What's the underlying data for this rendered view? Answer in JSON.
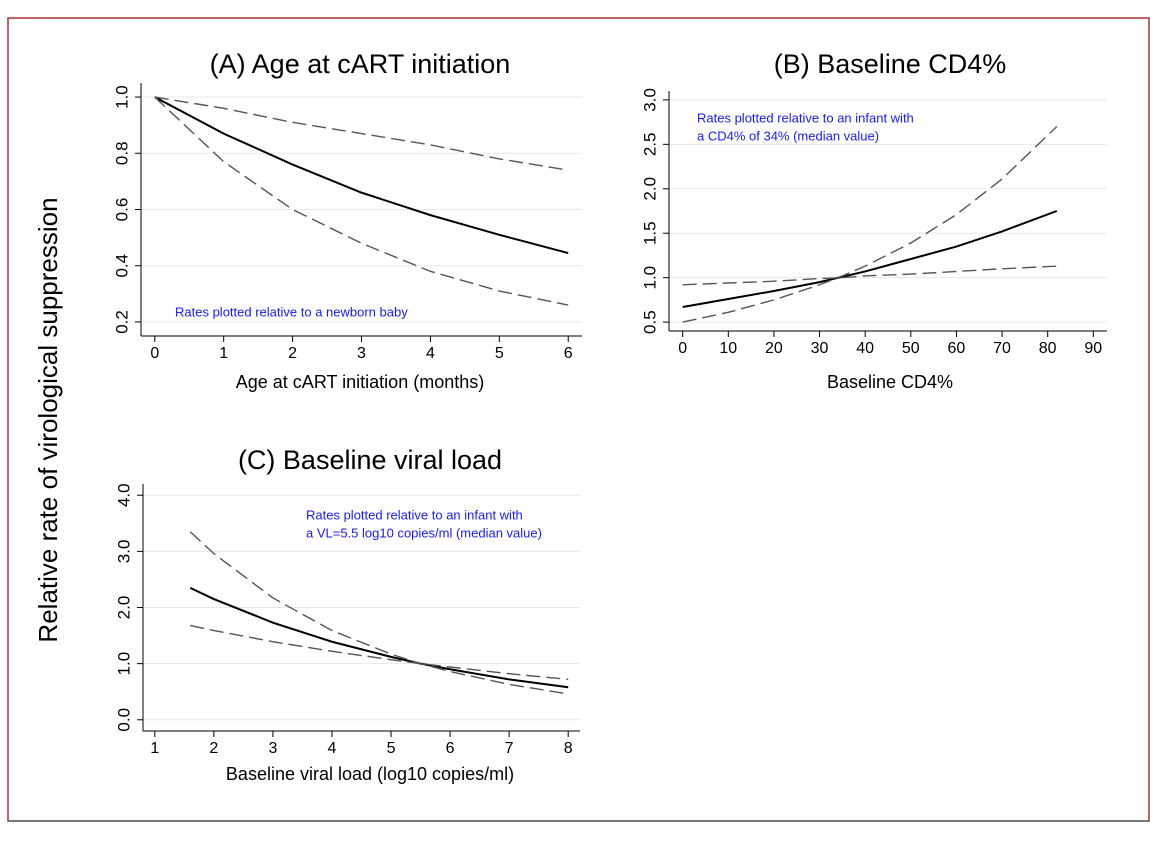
{
  "y_label": "Relative rate of virological suppression",
  "chart_data": [
    {
      "type": "line",
      "title": "(A) Age at cART initiation",
      "x_label": "Age at cART initiation (months)",
      "annotation": [
        "Rates plotted relative to a newborn baby"
      ],
      "x": [
        0,
        1,
        2,
        3,
        4,
        5,
        6
      ],
      "series": [
        {
          "color": "#000000",
          "dashed": false,
          "values": [
            1.0,
            0.87,
            0.76,
            0.66,
            0.58,
            0.51,
            0.445
          ]
        },
        {
          "color": "#555555",
          "dashed": true,
          "values": [
            1.0,
            0.96,
            0.91,
            0.87,
            0.83,
            0.78,
            0.74
          ]
        },
        {
          "color": "#555555",
          "dashed": true,
          "values": [
            1.0,
            0.77,
            0.6,
            0.48,
            0.38,
            0.31,
            0.26
          ]
        }
      ],
      "xlim": [
        -0.2,
        6.2
      ],
      "xticks": [
        0,
        1,
        2,
        3,
        4,
        5,
        6
      ],
      "ylim": [
        0.15,
        1.05
      ],
      "yticks": [
        0.2,
        0.4,
        0.6,
        0.8,
        {
          "value": 1,
          "label": "1.0"
        }
      ],
      "grid": true
    },
    {
      "type": "line",
      "title": "(B) Baseline CD4%",
      "x_label": "Baseline CD4%",
      "annotation": [
        "Rates plotted relative to an infant with",
        "a CD4% of 34% (median value)"
      ],
      "x": [
        0,
        10,
        20,
        30,
        35,
        40,
        50,
        60,
        70,
        82
      ],
      "series": [
        {
          "color": "#000000",
          "dashed": false,
          "values": [
            0.67,
            0.76,
            0.85,
            0.95,
            1.01,
            1.07,
            1.21,
            1.35,
            1.52,
            1.75
          ]
        },
        {
          "color": "#555555",
          "dashed": true,
          "values": [
            0.5,
            0.61,
            0.75,
            0.92,
            1.02,
            1.13,
            1.39,
            1.71,
            2.11,
            2.7
          ]
        },
        {
          "color": "#555555",
          "dashed": true,
          "values": [
            0.92,
            0.94,
            0.96,
            0.99,
            1.0,
            1.02,
            1.04,
            1.07,
            1.1,
            1.13
          ]
        }
      ],
      "xlim": [
        -3,
        93
      ],
      "xticks": [
        0,
        10,
        20,
        30,
        40,
        50,
        60,
        70,
        80,
        90
      ],
      "ylim": [
        0.4,
        3.1
      ],
      "yticks": [
        0.5,
        {
          "value": 1,
          "label": "1.0"
        },
        1.5,
        {
          "value": 2,
          "label": "2.0"
        },
        2.5,
        {
          "value": 3,
          "label": "3.0"
        }
      ],
      "grid": true
    },
    {
      "type": "line",
      "title": "(C) Baseline viral load",
      "x_label": "Baseline viral load (log10 copies/ml)",
      "annotation": [
        "Rates plotted relative to an infant with",
        "a VL=5.5 log10 copies/ml (median value)"
      ],
      "x": [
        1.6,
        2,
        3,
        4,
        5,
        5.5,
        6,
        7,
        8
      ],
      "series": [
        {
          "color": "#000000",
          "dashed": false,
          "values": [
            2.35,
            2.15,
            1.73,
            1.39,
            1.12,
            1.0,
            0.9,
            0.72,
            0.58
          ]
        },
        {
          "color": "#555555",
          "dashed": true,
          "values": [
            3.35,
            2.96,
            2.17,
            1.59,
            1.17,
            1.0,
            0.86,
            0.63,
            0.46
          ]
        },
        {
          "color": "#555555",
          "dashed": true,
          "values": [
            1.68,
            1.59,
            1.39,
            1.22,
            1.07,
            1.0,
            0.94,
            0.82,
            0.72
          ]
        }
      ],
      "xlim": [
        0.8,
        8.2
      ],
      "xticks": [
        1,
        2,
        3,
        4,
        5,
        6,
        7,
        8
      ],
      "ylim": [
        -0.2,
        4.2
      ],
      "yticks": [
        {
          "value": 0,
          "label": "0.0"
        },
        {
          "value": 1,
          "label": "1.0"
        },
        {
          "value": 2,
          "label": "2.0"
        },
        {
          "value": 3,
          "label": "3.0"
        },
        {
          "value": 4,
          "label": "4.0"
        }
      ],
      "grid": true
    }
  ]
}
